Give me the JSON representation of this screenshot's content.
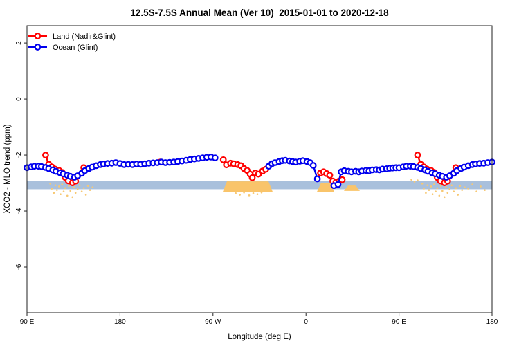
{
  "title": "12.5S-7.5S Annual Mean (Ver 10)  2015-01-01 to 2020-12-18",
  "chart_data": {
    "type": "line",
    "title": "12.5S-7.5S Annual Mean (Ver 10)  2015-01-01 to 2020-12-18",
    "xlabel": "Longitude (deg E)",
    "ylabel": "XCO2 - MLO trend (ppm)",
    "grid": false,
    "x_axis": {
      "range_deg": [
        90,
        540
      ],
      "note": "axis wraps eastward: 90E to 180, 90W, 0, 90E, 180",
      "ticks": [
        {
          "value": 90,
          "label": "90 E"
        },
        {
          "value": 180,
          "label": "180"
        },
        {
          "value": 270,
          "label": "90 W"
        },
        {
          "value": 360,
          "label": "0"
        },
        {
          "value": 450,
          "label": "90 E"
        },
        {
          "value": 540,
          "label": "180"
        }
      ]
    },
    "y_axis": {
      "range": [
        -7.63,
        2.62
      ],
      "ticks": [
        {
          "value": 2,
          "label": "2"
        },
        {
          "value": 0,
          "label": "0"
        },
        {
          "value": -2,
          "label": "-2"
        },
        {
          "value": -4,
          "label": "-4"
        },
        {
          "value": -6,
          "label": "-6"
        }
      ]
    },
    "legend": {
      "position": "top-left",
      "entries": [
        {
          "label": "Land (Nadir&Glint)",
          "color": "#ff0000"
        },
        {
          "label": "Ocean (Glint)",
          "color": "#0000ee"
        }
      ]
    },
    "band": {
      "color": "#a9c0dc",
      "x_from": 90,
      "x_to": 540,
      "y_from": -2.92,
      "y_to": -3.22
    },
    "patches": [
      {
        "color": "#f9c46a",
        "shape": "trapezoid",
        "x_from": 281.5,
        "x_to": 325.7,
        "y_from": -2.94,
        "y_to": -3.31
      },
      {
        "color": "#f9c46a",
        "shape": "trapezoid",
        "x_from": 372.6,
        "x_to": 385.3,
        "y_from": -2.99,
        "y_to": -3.31
      },
      {
        "color": "#f9c46a",
        "shape": "trapezoid",
        "x_from": 398.7,
        "x_to": 410.1,
        "y_from": -3.09,
        "y_to": -3.28
      }
    ],
    "speckles": {
      "color": "#f7c873",
      "points": [
        [
          112.5,
          -3.02
        ],
        [
          114,
          -3.2
        ],
        [
          116,
          -3.35
        ],
        [
          117.5,
          -3.08
        ],
        [
          119,
          -3.25
        ],
        [
          121,
          -3.12
        ],
        [
          122.5,
          -3.4
        ],
        [
          124,
          -3.05
        ],
        [
          125.5,
          -3.3
        ],
        [
          127,
          -3.18
        ],
        [
          129,
          -3.45
        ],
        [
          130.5,
          -3.1
        ],
        [
          132,
          -3.28
        ],
        [
          134,
          -3.5
        ],
        [
          135.5,
          -3.15
        ],
        [
          137,
          -3.35
        ],
        [
          139,
          -3.22
        ],
        [
          141,
          -3.08
        ],
        [
          143,
          -3.3
        ],
        [
          145,
          -3.18
        ],
        [
          147,
          -3.42
        ],
        [
          149,
          -3.1
        ],
        [
          151,
          -3.25
        ],
        [
          153.5,
          -3.15
        ],
        [
          292,
          -3.36
        ],
        [
          296,
          -3.42
        ],
        [
          300,
          -3.34
        ],
        [
          305,
          -3.44
        ],
        [
          309,
          -3.36
        ],
        [
          313,
          -3.4
        ],
        [
          317,
          -3.34
        ],
        [
          462,
          -2.88
        ],
        [
          465,
          -2.95
        ],
        [
          468,
          -2.9
        ],
        [
          472.5,
          -3.02
        ],
        [
          474,
          -3.2
        ],
        [
          476,
          -3.35
        ],
        [
          477.5,
          -3.08
        ],
        [
          479,
          -3.25
        ],
        [
          481,
          -3.12
        ],
        [
          482.5,
          -3.4
        ],
        [
          484,
          -3.05
        ],
        [
          485.5,
          -3.3
        ],
        [
          487,
          -3.18
        ],
        [
          489,
          -3.45
        ],
        [
          490.5,
          -3.1
        ],
        [
          492,
          -3.28
        ],
        [
          494,
          -3.5
        ],
        [
          495.5,
          -3.15
        ],
        [
          497,
          -3.35
        ],
        [
          499,
          -3.22
        ],
        [
          501,
          -3.08
        ],
        [
          503,
          -3.3
        ],
        [
          505,
          -3.18
        ],
        [
          507,
          -3.42
        ],
        [
          509,
          -3.1
        ],
        [
          511,
          -3.25
        ],
        [
          513.5,
          -3.15
        ],
        [
          517,
          -3.2
        ],
        [
          521,
          -3.05
        ],
        [
          525,
          -3.3
        ],
        [
          529,
          -3.12
        ],
        [
          533,
          -3.25
        ]
      ]
    },
    "series": [
      {
        "name": "Land (Nadir&Glint)",
        "color": "#ff0000",
        "marker": "open-circle",
        "segments": [
          [
            [
              108,
              -2.0
            ],
            [
              111,
              -2.33
            ],
            [
              114,
              -2.42
            ],
            [
              117,
              -2.5
            ],
            [
              121,
              -2.55
            ],
            [
              124,
              -2.62
            ],
            [
              127,
              -2.8
            ],
            [
              130,
              -2.92
            ],
            [
              134,
              -2.99
            ],
            [
              137,
              -2.93
            ],
            [
              145,
              -2.45
            ]
          ],
          [
            [
              219,
              -2.25
            ]
          ],
          [
            [
              280,
              -2.17
            ],
            [
              283,
              -2.35
            ],
            [
              287,
              -2.29
            ],
            [
              290,
              -2.31
            ],
            [
              294,
              -2.34
            ],
            [
              297,
              -2.38
            ],
            [
              300,
              -2.48
            ],
            [
              303,
              -2.55
            ],
            [
              306,
              -2.68
            ],
            [
              308,
              -2.81
            ],
            [
              311,
              -2.64
            ],
            [
              314,
              -2.68
            ],
            [
              318,
              -2.57
            ],
            [
              321,
              -2.51
            ]
          ],
          [
            [
              374,
              -2.64
            ],
            [
              377,
              -2.6
            ],
            [
              380,
              -2.66
            ],
            [
              383,
              -2.72
            ],
            [
              386,
              -2.93
            ],
            [
              389,
              -2.97
            ],
            [
              392,
              -2.93
            ],
            [
              395,
              -2.88
            ]
          ],
          [
            [
              468,
              -2.0
            ],
            [
              471,
              -2.33
            ],
            [
              474,
              -2.42
            ],
            [
              477,
              -2.5
            ],
            [
              481,
              -2.55
            ],
            [
              484,
              -2.62
            ],
            [
              487,
              -2.8
            ],
            [
              490,
              -2.92
            ],
            [
              494,
              -2.99
            ],
            [
              497,
              -2.93
            ],
            [
              505,
              -2.45
            ]
          ]
        ]
      },
      {
        "name": "Ocean (Glint)",
        "color": "#0000ee",
        "marker": "open-circle",
        "segments": [
          [
            [
              90,
              -2.45
            ],
            [
              94,
              -2.42
            ],
            [
              97,
              -2.4
            ],
            [
              101,
              -2.4
            ],
            [
              104,
              -2.41
            ],
            [
              108,
              -2.44
            ],
            [
              111,
              -2.48
            ],
            [
              115,
              -2.53
            ],
            [
              118,
              -2.58
            ],
            [
              122,
              -2.63
            ],
            [
              125,
              -2.67
            ],
            [
              129,
              -2.72
            ],
            [
              132,
              -2.76
            ],
            [
              136,
              -2.79
            ],
            [
              139,
              -2.74
            ],
            [
              143,
              -2.65
            ],
            [
              146,
              -2.56
            ],
            [
              150,
              -2.48
            ],
            [
              153,
              -2.43
            ],
            [
              157,
              -2.38
            ],
            [
              161,
              -2.34
            ],
            [
              164,
              -2.32
            ],
            [
              168,
              -2.3
            ],
            [
              172,
              -2.29
            ],
            [
              176,
              -2.27
            ],
            [
              180,
              -2.3
            ],
            [
              184,
              -2.34
            ],
            [
              188,
              -2.33
            ],
            [
              192,
              -2.34
            ],
            [
              196,
              -2.32
            ],
            [
              200,
              -2.33
            ],
            [
              204,
              -2.31
            ],
            [
              208,
              -2.29
            ],
            [
              212,
              -2.28
            ],
            [
              216,
              -2.27
            ],
            [
              220,
              -2.25
            ],
            [
              224,
              -2.27
            ],
            [
              228,
              -2.26
            ],
            [
              232,
              -2.25
            ],
            [
              236,
              -2.23
            ],
            [
              240,
              -2.21
            ],
            [
              244,
              -2.19
            ],
            [
              248,
              -2.16
            ],
            [
              252,
              -2.14
            ],
            [
              256,
              -2.12
            ],
            [
              260,
              -2.1
            ],
            [
              264,
              -2.08
            ],
            [
              268,
              -2.07
            ],
            [
              272,
              -2.1
            ]
          ],
          [
            [
              324,
              -2.4
            ],
            [
              327,
              -2.31
            ],
            [
              330,
              -2.27
            ],
            [
              334,
              -2.23
            ],
            [
              337,
              -2.2
            ],
            [
              340,
              -2.19
            ],
            [
              344,
              -2.21
            ],
            [
              347,
              -2.23
            ],
            [
              350,
              -2.25
            ],
            [
              354,
              -2.22
            ],
            [
              357,
              -2.2
            ],
            [
              361,
              -2.23
            ],
            [
              364,
              -2.27
            ],
            [
              367,
              -2.37
            ],
            [
              371,
              -2.85
            ]
          ],
          [
            [
              387,
              -3.09
            ],
            [
              391,
              -3.05
            ],
            [
              394,
              -2.6
            ],
            [
              397,
              -2.56
            ],
            [
              401,
              -2.58
            ],
            [
              404,
              -2.6
            ],
            [
              408,
              -2.58
            ],
            [
              411,
              -2.6
            ],
            [
              414,
              -2.57
            ],
            [
              418,
              -2.55
            ],
            [
              421,
              -2.56
            ],
            [
              424,
              -2.53
            ],
            [
              428,
              -2.52
            ],
            [
              431,
              -2.53
            ],
            [
              434,
              -2.5
            ],
            [
              438,
              -2.49
            ],
            [
              441,
              -2.47
            ],
            [
              444,
              -2.46
            ],
            [
              447,
              -2.45
            ],
            [
              450,
              -2.45
            ],
            [
              454,
              -2.42
            ],
            [
              457,
              -2.4
            ],
            [
              461,
              -2.4
            ],
            [
              464,
              -2.41
            ],
            [
              468,
              -2.44
            ],
            [
              471,
              -2.48
            ],
            [
              475,
              -2.53
            ],
            [
              478,
              -2.58
            ],
            [
              482,
              -2.63
            ],
            [
              485,
              -2.67
            ],
            [
              489,
              -2.72
            ],
            [
              492,
              -2.76
            ],
            [
              496,
              -2.79
            ],
            [
              499,
              -2.74
            ],
            [
              503,
              -2.65
            ],
            [
              506,
              -2.56
            ],
            [
              510,
              -2.48
            ],
            [
              513,
              -2.43
            ],
            [
              517,
              -2.38
            ],
            [
              521,
              -2.34
            ],
            [
              524,
              -2.32
            ],
            [
              528,
              -2.3
            ],
            [
              532,
              -2.29
            ],
            [
              536,
              -2.27
            ],
            [
              540,
              -2.25
            ]
          ]
        ]
      }
    ]
  }
}
